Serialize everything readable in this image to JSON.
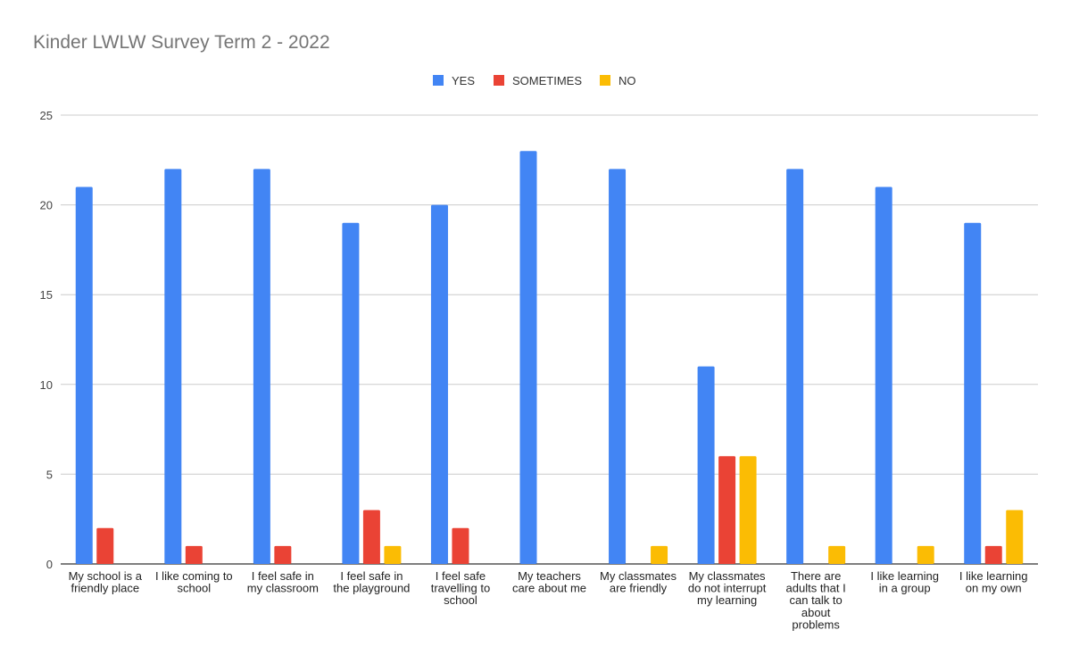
{
  "chart_data": {
    "type": "bar",
    "title": "Kinder LWLW Survey Term 2 - 2022",
    "xlabel": "",
    "ylabel": "",
    "ylim": [
      0,
      25
    ],
    "yticks": [
      "0",
      "5",
      "10",
      "15",
      "20",
      "25"
    ],
    "grid": true,
    "legend_position": "top",
    "categories": [
      [
        "My school is a",
        "friendly place"
      ],
      [
        "I like coming to",
        "school"
      ],
      [
        "I feel safe in",
        "my classroom"
      ],
      [
        "I feel safe in",
        "the playground"
      ],
      [
        "I feel safe",
        "travelling to",
        "school"
      ],
      [
        "My teachers",
        "care about me"
      ],
      [
        "My classmates",
        "are friendly"
      ],
      [
        "My classmates",
        "do not interrupt",
        "my learning"
      ],
      [
        "There are",
        "adults that I",
        "can talk to",
        "about",
        "problems"
      ],
      [
        "I like learning",
        "in a group"
      ],
      [
        "I like learning",
        "on my own"
      ]
    ],
    "series": [
      {
        "name": "YES",
        "color": "#4285f4",
        "values": [
          21,
          22,
          22,
          19,
          20,
          23,
          22,
          11,
          22,
          21,
          19
        ]
      },
      {
        "name": "SOMETIMES",
        "color": "#ea4335",
        "values": [
          2,
          1,
          1,
          3,
          2,
          0,
          0,
          6,
          0,
          0,
          1
        ]
      },
      {
        "name": "NO",
        "color": "#fbbc04",
        "values": [
          0,
          0,
          0,
          1,
          0,
          0,
          1,
          6,
          1,
          1,
          3
        ]
      }
    ]
  }
}
